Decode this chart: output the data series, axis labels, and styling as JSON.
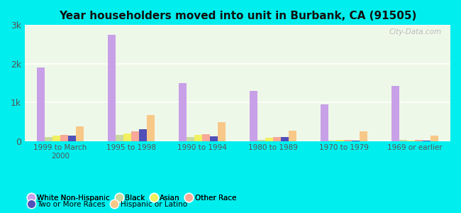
{
  "title": "Year householders moved into unit in Burbank, CA (91505)",
  "categories": [
    "1999 to March\n2000",
    "1995 to 1998",
    "1990 to 1994",
    "1980 to 1989",
    "1970 to 1979",
    "1969 or earlier"
  ],
  "series_order": [
    "White Non-Hispanic",
    "Black",
    "Asian",
    "Other Race",
    "Two or More Races",
    "Hispanic or Latino"
  ],
  "series": {
    "White Non-Hispanic": [
      1900,
      2750,
      1500,
      1300,
      950,
      1430
    ],
    "Black": [
      100,
      150,
      100,
      30,
      15,
      20
    ],
    "Asian": [
      130,
      200,
      150,
      80,
      20,
      15
    ],
    "Other Race": [
      150,
      250,
      170,
      100,
      20,
      20
    ],
    "Two or More Races": [
      140,
      310,
      120,
      100,
      10,
      10
    ],
    "Hispanic or Latino": [
      380,
      680,
      480,
      260,
      250,
      130
    ]
  },
  "colors": {
    "White Non-Hispanic": "#c8a0e8",
    "Black": "#c8d8a0",
    "Asian": "#f0f060",
    "Other Race": "#f8a898",
    "Two or More Races": "#5050b8",
    "Hispanic or Latino": "#f8c888"
  },
  "ylim": [
    0,
    3000
  ],
  "yticks": [
    0,
    1000,
    2000,
    3000
  ],
  "ytick_labels": [
    "0",
    "1k",
    "2k",
    "3k"
  ],
  "background_color": "#00eeee",
  "plot_bg": "#eef8e8",
  "watermark": "City-Data.com",
  "legend_row1": [
    "White Non-Hispanic",
    "Black",
    "Asian",
    "Other Race"
  ],
  "legend_row2": [
    "Two or More Races",
    "Hispanic or Latino"
  ]
}
